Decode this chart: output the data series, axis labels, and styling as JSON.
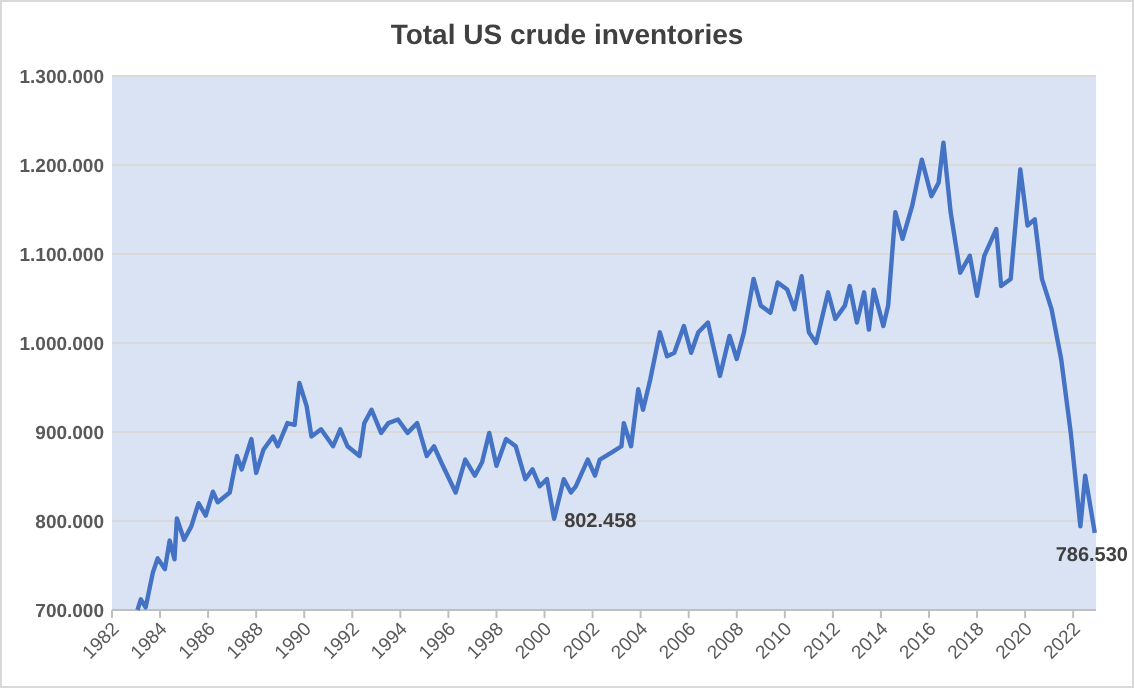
{
  "chart_data": {
    "type": "line",
    "title": "Total US crude inventories",
    "x": [
      1983.06,
      1983.2,
      1983.4,
      1983.7,
      1983.9,
      1984.2,
      1984.4,
      1984.6,
      1984.7,
      1985.0,
      1985.3,
      1985.6,
      1985.9,
      1986.2,
      1986.4,
      1986.9,
      1987.2,
      1987.4,
      1987.8,
      1988.0,
      1988.3,
      1988.7,
      1988.9,
      1989.3,
      1989.6,
      1989.8,
      1990.1,
      1990.3,
      1990.7,
      1991.2,
      1991.5,
      1991.8,
      1992.3,
      1992.5,
      1992.8,
      1993.2,
      1993.5,
      1993.9,
      1994.3,
      1994.7,
      1995.1,
      1995.4,
      1995.7,
      1996.3,
      1996.7,
      1997.1,
      1997.4,
      1997.7,
      1998.0,
      1998.4,
      1998.8,
      1999.2,
      1999.5,
      1999.8,
      2000.1,
      2000.4,
      2000.8,
      2001.1,
      2001.3,
      2001.8,
      2002.1,
      2002.3,
      2002.8,
      2003.2,
      2003.3,
      2003.6,
      2003.9,
      2004.1,
      2004.4,
      2004.8,
      2005.1,
      2005.4,
      2005.8,
      2006.1,
      2006.4,
      2006.8,
      2007.3,
      2007.7,
      2008.0,
      2008.3,
      2008.7,
      2009.0,
      2009.4,
      2009.7,
      2010.1,
      2010.4,
      2010.7,
      2011.0,
      2011.3,
      2011.8,
      2012.1,
      2012.5,
      2012.7,
      2013.0,
      2013.3,
      2013.5,
      2013.7,
      2014.1,
      2014.3,
      2014.6,
      2014.9,
      2015.3,
      2015.7,
      2016.1,
      2016.4,
      2016.6,
      2016.9,
      2017.3,
      2017.7,
      2018.0,
      2018.3,
      2018.8,
      2019.0,
      2019.4,
      2019.8,
      2020.1,
      2020.4,
      2020.7,
      2021.1,
      2021.5,
      2021.9,
      2022.3,
      2022.5,
      2022.9
    ],
    "series": [
      {
        "color": "#4472c4",
        "values": [
          700000,
          712000,
          703000,
          742000,
          758000,
          746000,
          778000,
          757000,
          803000,
          779000,
          794000,
          820000,
          806000,
          833000,
          821000,
          832000,
          873000,
          858000,
          892000,
          854000,
          880000,
          895000,
          884000,
          910000,
          908000,
          955000,
          929000,
          895000,
          903000,
          884000,
          903000,
          884000,
          873000,
          910000,
          925000,
          899000,
          910000,
          914000,
          899000,
          910000,
          873000,
          884000,
          866000,
          832000,
          869000,
          851000,
          866000,
          899000,
          862000,
          892000,
          884000,
          847000,
          858000,
          839000,
          847000,
          802458,
          847000,
          832000,
          839000,
          869000,
          851000,
          869000,
          877000,
          884000,
          910000,
          884000,
          948000,
          925000,
          959000,
          1012000,
          985000,
          989000,
          1019000,
          989000,
          1012000,
          1023000,
          963000,
          1008000,
          982000,
          1012000,
          1072000,
          1042000,
          1034000,
          1068000,
          1060000,
          1038000,
          1075000,
          1012000,
          1000000,
          1057000,
          1027000,
          1042000,
          1064000,
          1023000,
          1057000,
          1015000,
          1060000,
          1019000,
          1042000,
          1147000,
          1117000,
          1154000,
          1206000,
          1165000,
          1180000,
          1225000,
          1147000,
          1079000,
          1098000,
          1053000,
          1098000,
          1128000,
          1064000,
          1072000,
          1195000,
          1132000,
          1139000,
          1072000,
          1038000,
          982000,
          899000,
          794000,
          851000,
          786530
        ]
      }
    ],
    "xlim": [
      1982,
      2022.95
    ],
    "xticks": [
      1982,
      1984,
      1986,
      1988,
      1990,
      1992,
      1994,
      1996,
      1998,
      2000,
      2002,
      2004,
      2006,
      2008,
      2010,
      2012,
      2014,
      2016,
      2018,
      2020,
      2022
    ],
    "ylim": [
      700000,
      1300000
    ],
    "yticks": [
      {
        "value": 700000,
        "label": "700.000"
      },
      {
        "value": 800000,
        "label": "800.000"
      },
      {
        "value": 900000,
        "label": "900.000"
      },
      {
        "value": 1000000,
        "label": "1.000.000"
      },
      {
        "value": 1100000,
        "label": "1.100.000"
      },
      {
        "value": 1200000,
        "label": "1.200.000"
      },
      {
        "value": 1300000,
        "label": "1.300.000"
      }
    ],
    "grid": "y",
    "line_style": "solid",
    "annotations": [
      {
        "text": "802.458",
        "x": 2000.4,
        "y": 802458
      },
      {
        "text": "786.530",
        "x": 2022.9,
        "y": 786530
      }
    ]
  }
}
